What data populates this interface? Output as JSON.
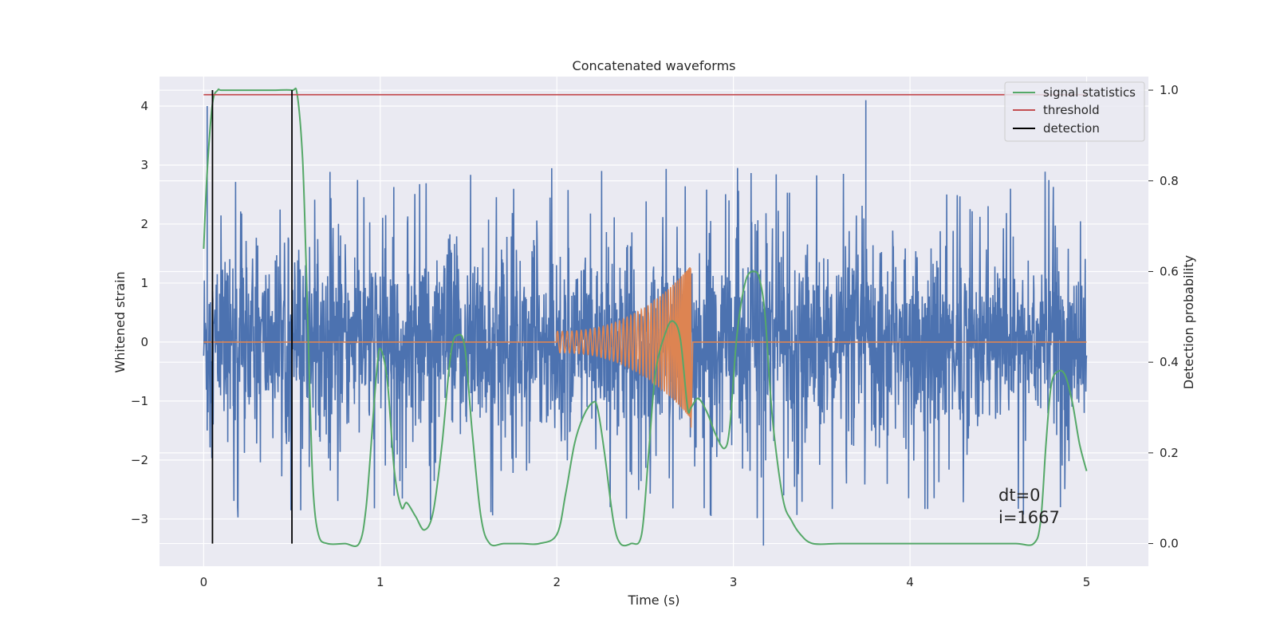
{
  "chart_data": {
    "type": "line",
    "title": "Concatenated waveforms",
    "xlabel": "Time (s)",
    "ylabel": "Whitened strain",
    "ylabel_right": "Detection probability",
    "xlim": [
      -0.25,
      5.35
    ],
    "ylim": [
      -3.8,
      4.5
    ],
    "ylim_right": [
      -0.05,
      1.03
    ],
    "x_ticks": [
      0,
      1,
      2,
      3,
      4,
      5
    ],
    "x_tick_labels": [
      "0",
      "1",
      "2",
      "3",
      "4",
      "5"
    ],
    "y_ticks": [
      -3,
      -2,
      -1,
      0,
      1,
      2,
      3,
      4
    ],
    "y_tick_labels": [
      "−3",
      "−2",
      "−1",
      "0",
      "1",
      "2",
      "3",
      "4"
    ],
    "y_right_ticks": [
      0.0,
      0.2,
      0.4,
      0.6,
      0.8,
      1.0
    ],
    "y_right_tick_labels": [
      "0.0",
      "0.2",
      "0.4",
      "0.6",
      "0.8",
      "1.0"
    ],
    "grid": true,
    "legend_position": "top-right",
    "legend": [
      {
        "label": "signal statistics",
        "color": "#55a868"
      },
      {
        "label": "threshold",
        "color": "#c44e52"
      },
      {
        "label": "detection",
        "color": "#000000"
      }
    ],
    "series": [
      {
        "axis": "left",
        "color": "#4c72b0",
        "kind": "noise",
        "x_range": [
          0,
          5
        ],
        "typical_range": [
          -1.5,
          1.6
        ],
        "extremes": [
          -3.45,
          4.1
        ]
      },
      {
        "axis": "left",
        "color": "#dd8452",
        "kind": "chirp",
        "x_range": [
          0,
          5
        ],
        "chirp_start": 2.0,
        "chirp_end": 2.76,
        "peak_amplitude": 1.3
      },
      {
        "name": "signal statistics",
        "axis": "right",
        "color": "#55a868",
        "x": [
          0.0,
          0.02,
          0.05,
          0.08,
          0.1,
          0.2,
          0.3,
          0.4,
          0.5,
          0.53,
          0.56,
          0.58,
          0.6,
          0.62,
          0.65,
          0.7,
          0.8,
          0.88,
          0.92,
          0.96,
          0.98,
          1.0,
          1.04,
          1.08,
          1.12,
          1.15,
          1.2,
          1.25,
          1.3,
          1.35,
          1.4,
          1.44,
          1.48,
          1.52,
          1.57,
          1.62,
          1.7,
          1.8,
          1.9,
          2.0,
          2.05,
          2.1,
          2.15,
          2.2,
          2.23,
          2.27,
          2.32,
          2.36,
          2.42,
          2.48,
          2.52,
          2.56,
          2.62,
          2.66,
          2.7,
          2.74,
          2.76,
          2.8,
          2.85,
          2.9,
          2.95,
          2.98,
          3.02,
          3.07,
          3.12,
          3.15,
          3.18,
          3.22,
          3.28,
          3.33,
          3.38,
          3.45,
          3.6,
          3.8,
          4.0,
          4.2,
          4.4,
          4.6,
          4.7,
          4.74,
          4.77,
          4.8,
          4.84,
          4.88,
          4.92,
          4.96,
          5.0
        ],
        "values": [
          0.65,
          0.82,
          0.97,
          1.0,
          1.0,
          1.0,
          1.0,
          1.0,
          1.0,
          0.99,
          0.85,
          0.62,
          0.35,
          0.12,
          0.02,
          0.0,
          0.0,
          0.0,
          0.08,
          0.28,
          0.38,
          0.43,
          0.36,
          0.16,
          0.08,
          0.09,
          0.06,
          0.03,
          0.07,
          0.22,
          0.42,
          0.46,
          0.43,
          0.25,
          0.06,
          0.0,
          0.0,
          0.0,
          0.0,
          0.02,
          0.11,
          0.22,
          0.28,
          0.31,
          0.3,
          0.2,
          0.05,
          0.0,
          0.0,
          0.02,
          0.2,
          0.38,
          0.47,
          0.49,
          0.45,
          0.3,
          0.3,
          0.32,
          0.29,
          0.24,
          0.21,
          0.26,
          0.46,
          0.58,
          0.6,
          0.58,
          0.5,
          0.28,
          0.1,
          0.05,
          0.02,
          0.0,
          0.0,
          0.0,
          0.0,
          0.0,
          0.0,
          0.0,
          0.0,
          0.05,
          0.22,
          0.35,
          0.38,
          0.37,
          0.31,
          0.22,
          0.16
        ]
      },
      {
        "name": "threshold",
        "axis": "right",
        "color": "#c44e52",
        "x": [
          0.0,
          5.0
        ],
        "values": [
          0.99,
          0.99
        ]
      },
      {
        "name": "detection",
        "axis": "right",
        "color": "#000000",
        "kind": "vlines",
        "x": [
          0.05,
          0.5
        ],
        "ymin": 0.0,
        "ymax": 1.0
      }
    ],
    "annotations": [
      "dt=0",
      "i=1667"
    ],
    "annotation_position": [
      4.5,
      -2.8
    ]
  }
}
